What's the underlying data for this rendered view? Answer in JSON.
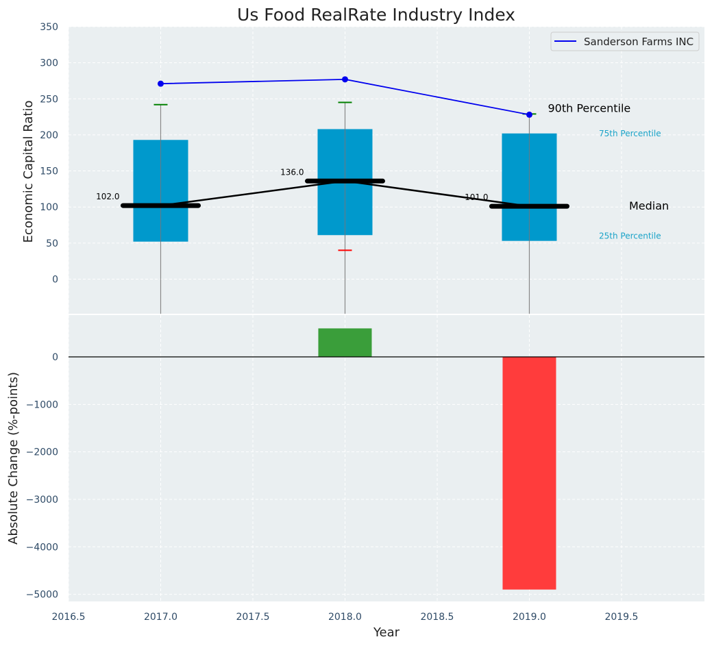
{
  "title": "Us Food RealRate Industry Index",
  "colors": {
    "panel_bg": "#eaeff1",
    "grid": "#ffffff",
    "box": "#0099cc",
    "company_line": "#0000ee",
    "median_line": "#000000",
    "whisker_top": "#008000",
    "whisker_bottom": "#ff0000",
    "bar_positive": "#3a9e3a",
    "bar_negative": "#ff3c3c",
    "tick_text": "#2e4a66",
    "percentile_label": "#1aa3c8"
  },
  "legend": {
    "label": "Sanderson Farms INC",
    "position": "top-right"
  },
  "chart_data": [
    {
      "panel": "top",
      "type": "box",
      "xlabel": "",
      "ylabel": "Economic Capital Ratio",
      "xlim": [
        2016.5,
        2019.95
      ],
      "ylim": [
        -48,
        350
      ],
      "yticks": [
        0,
        50,
        100,
        150,
        200,
        250,
        300,
        350
      ],
      "grid": true,
      "boxes": [
        {
          "x": 2017,
          "p25": 52,
          "median": 102,
          "p75": 193,
          "whisker_top": 242,
          "whisker_bottom": null
        },
        {
          "x": 2018,
          "p25": 61,
          "median": 136,
          "p75": 208,
          "whisker_top": 245,
          "whisker_bottom": 40
        },
        {
          "x": 2019,
          "p25": 53,
          "median": 101,
          "p75": 202,
          "whisker_top": 229,
          "whisker_bottom": null
        }
      ],
      "median_labels": [
        "102.0",
        "136.0",
        "101.0"
      ],
      "company_series": {
        "name": "Sanderson Farms INC",
        "x": [
          2017,
          2018,
          2019
        ],
        "y": [
          271,
          277,
          228
        ]
      },
      "annotations": {
        "p90": "90th Percentile",
        "p75": "75th Percentile",
        "median": "Median",
        "p25": "25th Percentile"
      }
    },
    {
      "panel": "bottom",
      "type": "bar",
      "xlabel": "Year",
      "ylabel": "Absolute Change (%-points)",
      "xlim": [
        2016.5,
        2019.95
      ],
      "ylim": [
        -5150,
        880
      ],
      "xticks": [
        2016.5,
        2017.0,
        2017.5,
        2018.0,
        2018.5,
        2019.0,
        2019.5
      ],
      "xtick_labels": [
        "2016.5",
        "2017.0",
        "2017.5",
        "2018.0",
        "2018.5",
        "2019.0",
        "2019.5"
      ],
      "yticks": [
        0,
        -1000,
        -2000,
        -3000,
        -4000,
        -5000
      ],
      "ytick_labels": [
        "0",
        "−1000",
        "−2000",
        "−3000",
        "−4000",
        "−5000"
      ],
      "grid": true,
      "x": [
        2018,
        2019
      ],
      "values": [
        600,
        -4900
      ]
    }
  ]
}
